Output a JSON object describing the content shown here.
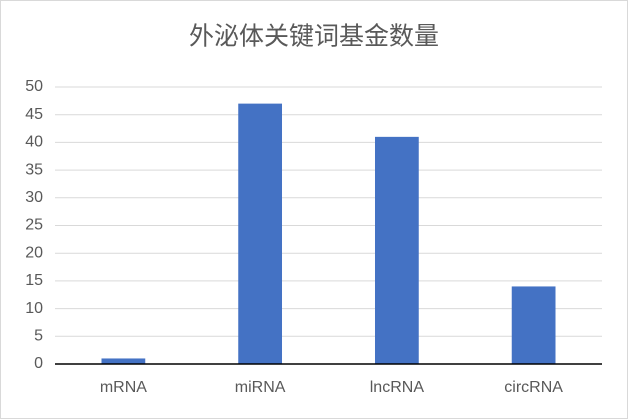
{
  "chart_data": {
    "type": "bar",
    "title": "外泌体关键词基金数量",
    "categories": [
      "mRNA",
      "miRNA",
      "lncRNA",
      "circRNA"
    ],
    "values": [
      1,
      47,
      41,
      14
    ],
    "color": "#4472c4",
    "ylim": [
      0,
      50
    ],
    "yticks": [
      0,
      5,
      10,
      15,
      20,
      25,
      30,
      35,
      40,
      45,
      50
    ],
    "grid": true
  }
}
